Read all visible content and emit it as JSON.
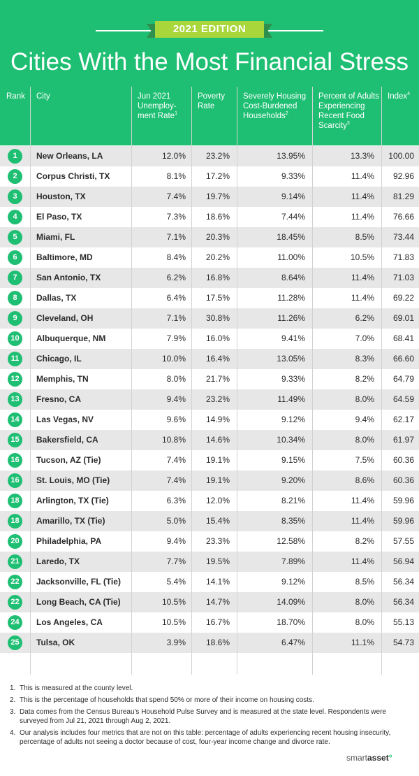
{
  "header": {
    "edition": "2021 EDITION",
    "title": "Cities With the Most Financial Stress"
  },
  "table": {
    "columns": [
      {
        "label": "Rank",
        "note": ""
      },
      {
        "label": "City",
        "note": ""
      },
      {
        "label": "Jun 2021 Unemploy-ment Rate",
        "note": "1"
      },
      {
        "label": "Poverty Rate",
        "note": ""
      },
      {
        "label": "Severely Housing Cost-Burdened Households",
        "note": "2"
      },
      {
        "label": "Percent of Adults Experiencing Recent Food Scarcity",
        "note": "3"
      },
      {
        "label": "Index",
        "note": "4"
      }
    ],
    "rows": [
      {
        "rank": "1",
        "city": "New Orleans, LA",
        "unemployment": "12.0%",
        "poverty": "23.2%",
        "housing": "13.95%",
        "food": "13.3%",
        "index": "100.00"
      },
      {
        "rank": "2",
        "city": "Corpus Christi, TX",
        "unemployment": "8.1%",
        "poverty": "17.2%",
        "housing": "9.33%",
        "food": "11.4%",
        "index": "92.96"
      },
      {
        "rank": "3",
        "city": "Houston, TX",
        "unemployment": "7.4%",
        "poverty": "19.7%",
        "housing": "9.14%",
        "food": "11.4%",
        "index": "81.29"
      },
      {
        "rank": "4",
        "city": "El Paso, TX",
        "unemployment": "7.3%",
        "poverty": "18.6%",
        "housing": "7.44%",
        "food": "11.4%",
        "index": "76.66"
      },
      {
        "rank": "5",
        "city": "Miami, FL",
        "unemployment": "7.1%",
        "poverty": "20.3%",
        "housing": "18.45%",
        "food": "8.5%",
        "index": "73.44"
      },
      {
        "rank": "6",
        "city": "Baltimore, MD",
        "unemployment": "8.4%",
        "poverty": "20.2%",
        "housing": "11.00%",
        "food": "10.5%",
        "index": "71.83"
      },
      {
        "rank": "7",
        "city": "San Antonio, TX",
        "unemployment": "6.2%",
        "poverty": "16.8%",
        "housing": "8.64%",
        "food": "11.4%",
        "index": "71.03"
      },
      {
        "rank": "8",
        "city": "Dallas, TX",
        "unemployment": "6.4%",
        "poverty": "17.5%",
        "housing": "11.28%",
        "food": "11.4%",
        "index": "69.22"
      },
      {
        "rank": "9",
        "city": "Cleveland, OH",
        "unemployment": "7.1%",
        "poverty": "30.8%",
        "housing": "11.26%",
        "food": "6.2%",
        "index": "69.01"
      },
      {
        "rank": "10",
        "city": "Albuquerque, NM",
        "unemployment": "7.9%",
        "poverty": "16.0%",
        "housing": "9.41%",
        "food": "7.0%",
        "index": "68.41"
      },
      {
        "rank": "11",
        "city": "Chicago, IL",
        "unemployment": "10.0%",
        "poverty": "16.4%",
        "housing": "13.05%",
        "food": "8.3%",
        "index": "66.60"
      },
      {
        "rank": "12",
        "city": "Memphis, TN",
        "unemployment": "8.0%",
        "poverty": "21.7%",
        "housing": "9.33%",
        "food": "8.2%",
        "index": "64.79"
      },
      {
        "rank": "13",
        "city": "Fresno, CA",
        "unemployment": "9.4%",
        "poverty": "23.2%",
        "housing": "11.49%",
        "food": "8.0%",
        "index": "64.59"
      },
      {
        "rank": "14",
        "city": "Las Vegas, NV",
        "unemployment": "9.6%",
        "poverty": "14.9%",
        "housing": "9.12%",
        "food": "9.4%",
        "index": "62.17"
      },
      {
        "rank": "15",
        "city": "Bakersfield, CA",
        "unemployment": "10.8%",
        "poverty": "14.6%",
        "housing": "10.34%",
        "food": "8.0%",
        "index": "61.97"
      },
      {
        "rank": "16",
        "city": "Tucson, AZ (Tie)",
        "unemployment": "7.4%",
        "poverty": "19.1%",
        "housing": "9.15%",
        "food": "7.5%",
        "index": "60.36"
      },
      {
        "rank": "16",
        "city": "St. Louis, MO (Tie)",
        "unemployment": "7.4%",
        "poverty": "19.1%",
        "housing": "9.20%",
        "food": "8.6%",
        "index": "60.36"
      },
      {
        "rank": "18",
        "city": "Arlington, TX (Tie)",
        "unemployment": "6.3%",
        "poverty": "12.0%",
        "housing": "8.21%",
        "food": "11.4%",
        "index": "59.96"
      },
      {
        "rank": "18",
        "city": "Amarillo, TX (Tie)",
        "unemployment": "5.0%",
        "poverty": "15.4%",
        "housing": "8.35%",
        "food": "11.4%",
        "index": "59.96"
      },
      {
        "rank": "20",
        "city": "Philadelphia, PA",
        "unemployment": "9.4%",
        "poverty": "23.3%",
        "housing": "12.58%",
        "food": "8.2%",
        "index": "57.55"
      },
      {
        "rank": "21",
        "city": "Laredo, TX",
        "unemployment": "7.7%",
        "poverty": "19.5%",
        "housing": "7.89%",
        "food": "11.4%",
        "index": "56.94"
      },
      {
        "rank": "22",
        "city": "Jacksonville, FL (Tie)",
        "unemployment": "5.4%",
        "poverty": "14.1%",
        "housing": "9.12%",
        "food": "8.5%",
        "index": "56.34"
      },
      {
        "rank": "22",
        "city": "Long Beach, CA (Tie)",
        "unemployment": "10.5%",
        "poverty": "14.7%",
        "housing": "14.09%",
        "food": "8.0%",
        "index": "56.34"
      },
      {
        "rank": "24",
        "city": "Los Angeles, CA",
        "unemployment": "10.5%",
        "poverty": "16.7%",
        "housing": "18.70%",
        "food": "8.0%",
        "index": "55.13"
      },
      {
        "rank": "25",
        "city": "Tulsa, OK",
        "unemployment": "3.9%",
        "poverty": "18.6%",
        "housing": "6.47%",
        "food": "11.1%",
        "index": "54.73"
      }
    ]
  },
  "footnotes": [
    {
      "num": "1.",
      "text": "This is measured at the county level."
    },
    {
      "num": "2.",
      "text": "This is the percentage of households that spend 50% or more of their income on housing costs."
    },
    {
      "num": "3.",
      "text": "Data comes from the Census Bureau's Household Pulse Survey and is measured at the state level. Respondents were surveyed from Jul 21, 2021 through Aug 2, 2021."
    },
    {
      "num": "4.",
      "text": "Our analysis includes four metrics that are not on this table: percentage of adults experiencing recent housing insecurity, percentage of adults not seeing a doctor because of cost, four-year income change and divorce rate."
    }
  ],
  "logo": {
    "part1": "smart",
    "part2": "asset",
    "mark": "°"
  },
  "colors": {
    "brand_green": "#1fbf73",
    "badge_green": "#a9d63a",
    "ribbon_dark": "#2e8f4e",
    "row_shade": "#e7e7e7"
  }
}
